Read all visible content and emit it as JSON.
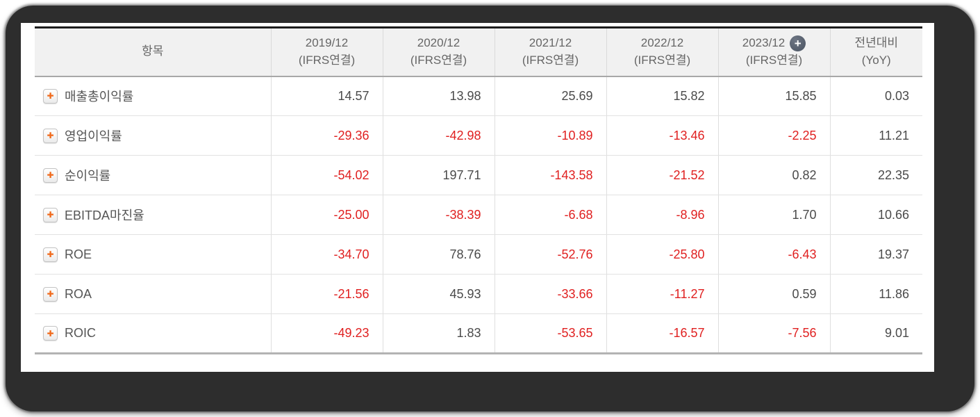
{
  "table": {
    "item_header": "항목",
    "columns": [
      {
        "year": "2019/12",
        "sub": "(IFRS연결)",
        "has_plus": false
      },
      {
        "year": "2020/12",
        "sub": "(IFRS연결)",
        "has_plus": false
      },
      {
        "year": "2021/12",
        "sub": "(IFRS연결)",
        "has_plus": false
      },
      {
        "year": "2022/12",
        "sub": "(IFRS연결)",
        "has_plus": false
      },
      {
        "year": "2023/12",
        "sub": "(IFRS연결)",
        "has_plus": true
      },
      {
        "year": "전년대비",
        "sub": "(YoY)",
        "has_plus": false
      }
    ],
    "rows": [
      {
        "label": "매출총이익률",
        "values": [
          "14.57",
          "13.98",
          "25.69",
          "15.82",
          "15.85",
          "0.03"
        ]
      },
      {
        "label": "영업이익률",
        "values": [
          "-29.36",
          "-42.98",
          "-10.89",
          "-13.46",
          "-2.25",
          "11.21"
        ]
      },
      {
        "label": "순이익률",
        "values": [
          "-54.02",
          "197.71",
          "-143.58",
          "-21.52",
          "0.82",
          "22.35"
        ]
      },
      {
        "label": "EBITDA마진율",
        "values": [
          "-25.00",
          "-38.39",
          "-6.68",
          "-8.96",
          "1.70",
          "10.66"
        ]
      },
      {
        "label": "ROE",
        "values": [
          "-34.70",
          "78.76",
          "-52.76",
          "-25.80",
          "-6.43",
          "19.37"
        ]
      },
      {
        "label": "ROA",
        "values": [
          "-21.56",
          "45.93",
          "-33.66",
          "-11.27",
          "0.59",
          "11.86"
        ]
      },
      {
        "label": "ROIC",
        "values": [
          "-49.23",
          "1.83",
          "-53.65",
          "-16.57",
          "-7.56",
          "9.01"
        ]
      }
    ],
    "icons": {
      "row_expand_glyph": "✚",
      "column_expand_glyph": "+"
    },
    "colors": {
      "negative_value": "#e02020",
      "positive_value": "#4a4a4a",
      "row_plus_orange": "#f06a1c",
      "header_plus_circle": "#5a6371",
      "header_background": "#f1f1f1"
    }
  }
}
